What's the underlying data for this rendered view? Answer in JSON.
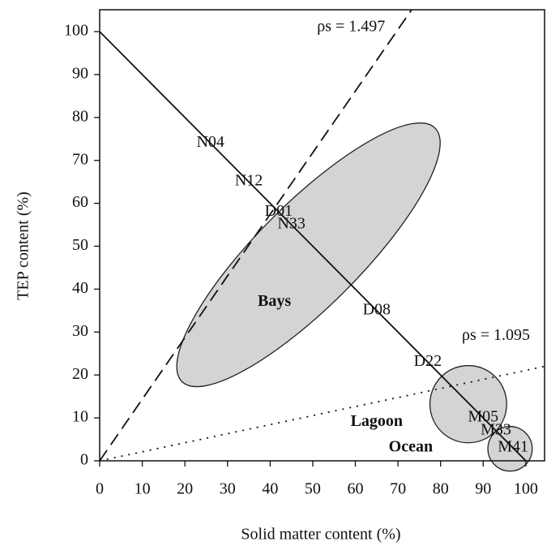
{
  "chart_data": {
    "type": "scatter",
    "x_label": "Solid matter content (%)",
    "y_label": "TEP content (%)",
    "xlim": [
      0,
      104.4
    ],
    "ylim": [
      0,
      105.1
    ],
    "xticks": [
      0,
      10,
      20,
      30,
      40,
      50,
      60,
      70,
      80,
      90,
      100
    ],
    "yticks": [
      0,
      10,
      20,
      30,
      40,
      50,
      60,
      70,
      80,
      90,
      100
    ],
    "points": {
      "labels": [
        "N04",
        "N12",
        "D01",
        "N33",
        "D08",
        "D22",
        "M05",
        "M33",
        "M41"
      ],
      "x": [
        26,
        35,
        42,
        45,
        65,
        77,
        90,
        93,
        97
      ],
      "y": [
        74,
        65,
        58,
        55,
        35,
        23,
        10,
        7,
        3
      ]
    },
    "lines": [
      {
        "style": "solid",
        "x": [
          0,
          100
        ],
        "y": [
          100,
          0
        ]
      },
      {
        "style": "dashed",
        "x": [
          0,
          73.2
        ],
        "y": [
          0,
          105.1
        ]
      },
      {
        "style": "dotted",
        "x": [
          0,
          104.4
        ],
        "y": [
          0,
          22
        ]
      }
    ],
    "regions": [
      {
        "name": "Bays",
        "cx": 49,
        "cy": 48,
        "rx": 42,
        "ry": 12,
        "angle": -45,
        "label_x": 41,
        "label_y": 37
      },
      {
        "name": "Lagoon",
        "cx": 86.5,
        "cy": 13.2,
        "rx": 9,
        "ry": 9,
        "angle": 0,
        "label_x": 65,
        "label_y": 9
      },
      {
        "name": "Ocean",
        "cx": 96.3,
        "cy": 2.8,
        "rx": 5.2,
        "ry": 5.2,
        "angle": 0,
        "label_x": 73,
        "label_y": 3
      }
    ],
    "annotations": [
      {
        "text": "ρs = 1.497",
        "x": 59,
        "y": 101
      },
      {
        "text": "ρs = 1.095",
        "x": 93,
        "y": 29
      }
    ]
  }
}
